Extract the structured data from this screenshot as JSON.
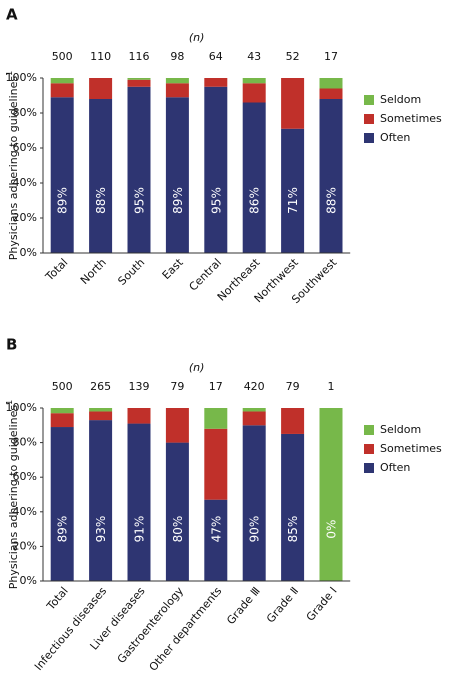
{
  "chart_data": [
    {
      "type": "stacked_bar",
      "panel": "A",
      "n_label": "(n)",
      "n": [
        500,
        110,
        116,
        98,
        64,
        43,
        52,
        17
      ],
      "ylabel": "Physicians adhering to guidelines",
      "ylabel_note": "1",
      "categories": [
        "Total",
        "North",
        "South",
        "East",
        "Central",
        "Northeast",
        "Northwest",
        "Southwest"
      ],
      "series": [
        {
          "name": "Often",
          "color": "#2e3572",
          "values": [
            89,
            88,
            95,
            89,
            95,
            86,
            71,
            88
          ],
          "value_labels": [
            "89%",
            "88%",
            "95%",
            "89%",
            "95%",
            "86%",
            "71%",
            "88%"
          ]
        },
        {
          "name": "Sometimes",
          "color": "#c0302a",
          "values": [
            8,
            12,
            4,
            8,
            5,
            11,
            29,
            6
          ]
        },
        {
          "name": "Seldom",
          "color": "#77b84a",
          "values": [
            3,
            0,
            1,
            3,
            0,
            3,
            0,
            6
          ]
        }
      ],
      "ylim": [
        0,
        100
      ],
      "yticks": [
        {
          "value": 0,
          "label": "0%"
        },
        {
          "value": 20,
          "label": "20%"
        },
        {
          "value": 40,
          "label": "40%"
        },
        {
          "value": 60,
          "label": "60%"
        },
        {
          "value": 80,
          "label": "80%"
        },
        {
          "value": 100,
          "label": "100%"
        }
      ],
      "legend": "right",
      "grid": false
    },
    {
      "type": "stacked_bar",
      "panel": "B",
      "n_label": "(n)",
      "n": [
        500,
        265,
        139,
        79,
        17,
        420,
        79,
        1
      ],
      "ylabel": "Physicians adhering to guidelines",
      "ylabel_note": "1",
      "categories": [
        "Total",
        "Infectious diseases",
        "Liver diseases",
        "Gastroenterology",
        "Other departments",
        "Grade Ⅲ",
        "Grade Ⅱ",
        "Grade Ⅰ"
      ],
      "series": [
        {
          "name": "Often",
          "color": "#2e3572",
          "values": [
            89,
            93,
            91,
            80,
            47,
            90,
            85,
            0
          ],
          "value_labels": [
            "89%",
            "93%",
            "91%",
            "80%",
            "47%",
            "90%",
            "85%",
            "0%"
          ]
        },
        {
          "name": "Sometimes",
          "color": "#c0302a",
          "values": [
            8,
            5,
            9,
            20,
            41,
            8,
            15,
            0
          ]
        },
        {
          "name": "Seldom",
          "color": "#77b84a",
          "values": [
            3,
            2,
            0,
            0,
            12,
            2,
            0,
            100
          ]
        }
      ],
      "ylim": [
        0,
        100
      ],
      "yticks": [
        {
          "value": 0,
          "label": "0%"
        },
        {
          "value": 20,
          "label": "20%"
        },
        {
          "value": 40,
          "label": "40%"
        },
        {
          "value": 60,
          "label": "60%"
        },
        {
          "value": 80,
          "label": "80%"
        },
        {
          "value": 100,
          "label": "100%"
        }
      ],
      "legend": "right",
      "grid": false
    }
  ]
}
